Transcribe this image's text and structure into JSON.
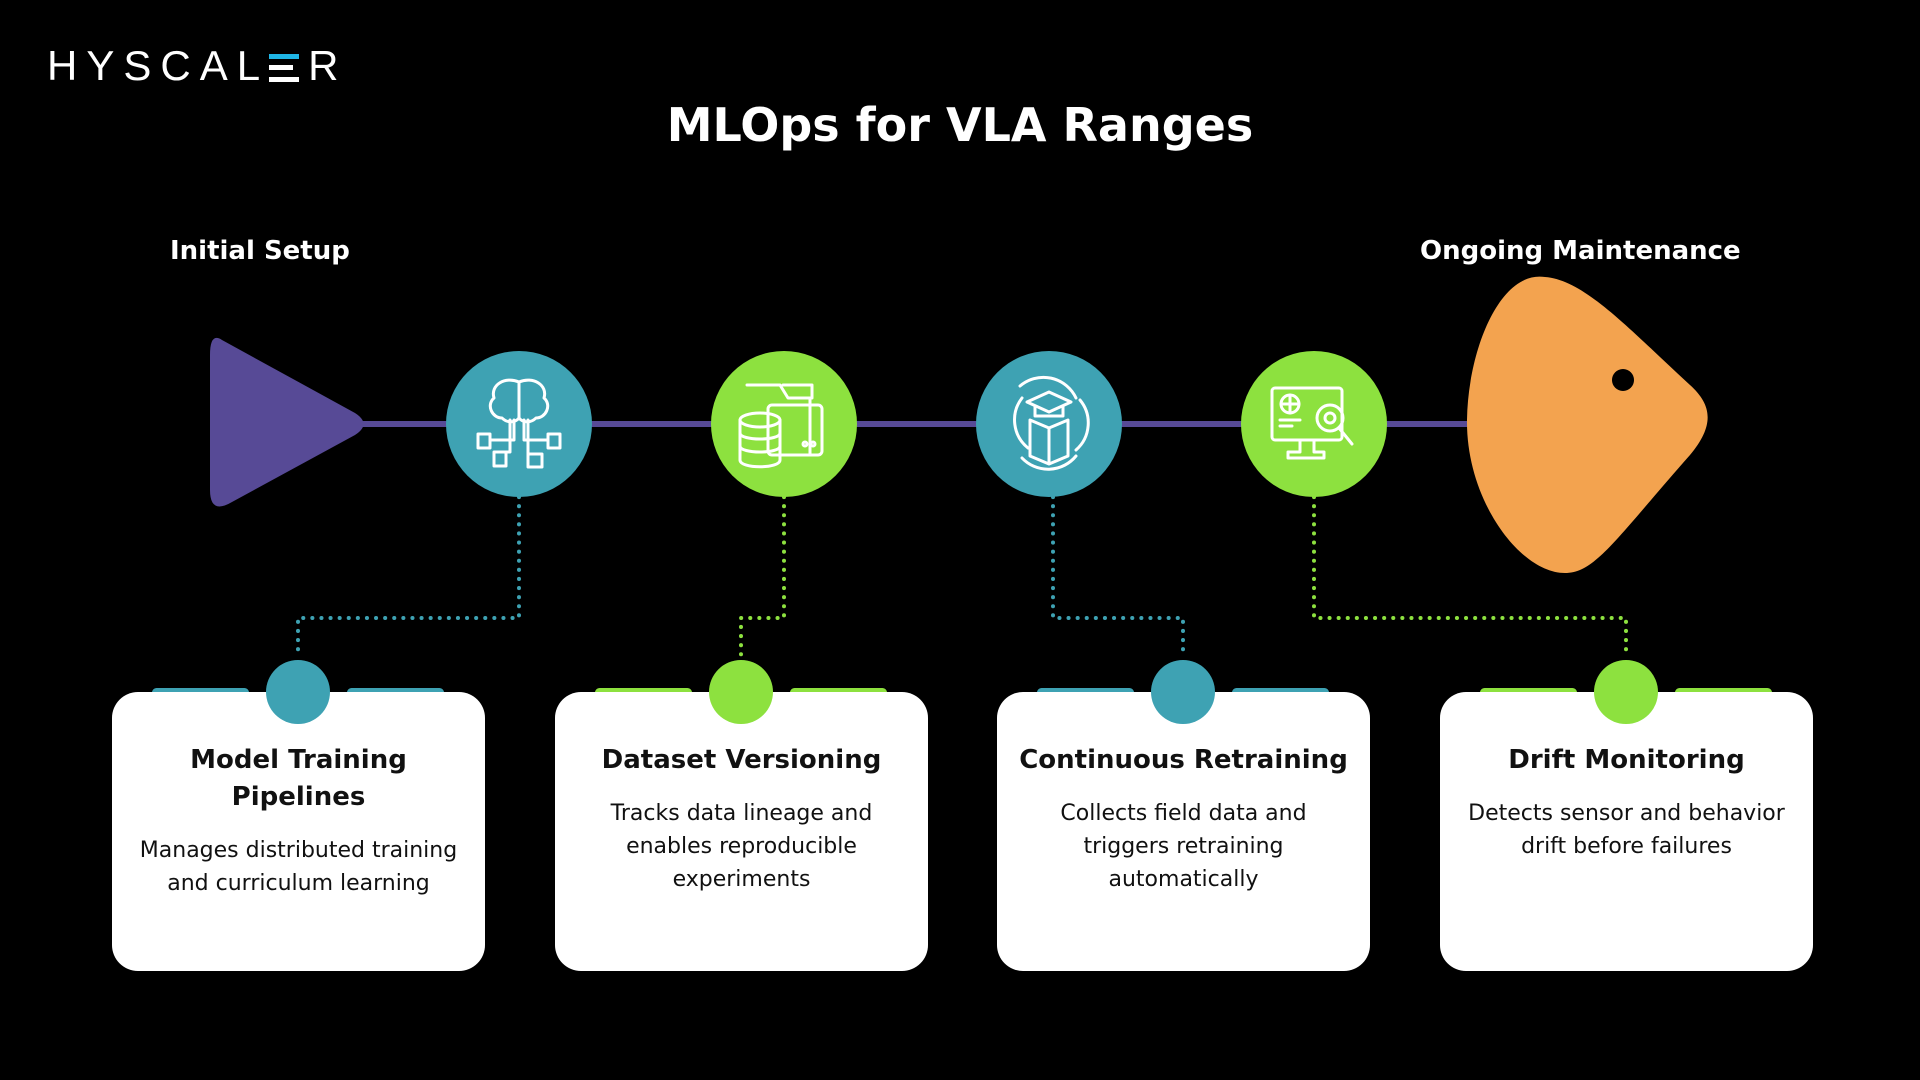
{
  "logo": {
    "text": "HYSCALER",
    "accent": "#1fb6e6"
  },
  "title": "MLOps for VLA Ranges",
  "phases": {
    "start": "Initial Setup",
    "end": "Ongoing Maintenance"
  },
  "colors": {
    "teal": "#3ea2b3",
    "green": "#8de13f",
    "purple": "#574a96",
    "orange": "#f3a34f",
    "line": "#574a96"
  },
  "steps": [
    {
      "icon": "brain-circuit-icon",
      "color": "teal",
      "title": "Model Training Pipelines",
      "desc": "Manages distributed training and curriculum learning"
    },
    {
      "icon": "database-folder-icon",
      "color": "green",
      "title": "Dataset Versioning",
      "desc": "Tracks data lineage and enables reproducible experiments"
    },
    {
      "icon": "graduation-book-cycle-icon",
      "color": "teal",
      "title": "Continuous Retraining",
      "desc": "Collects field data and triggers retraining automatically"
    },
    {
      "icon": "monitor-search-gear-icon",
      "color": "green",
      "title": "Drift Monitoring",
      "desc": "Detects sensor and behavior drift before failures"
    }
  ]
}
